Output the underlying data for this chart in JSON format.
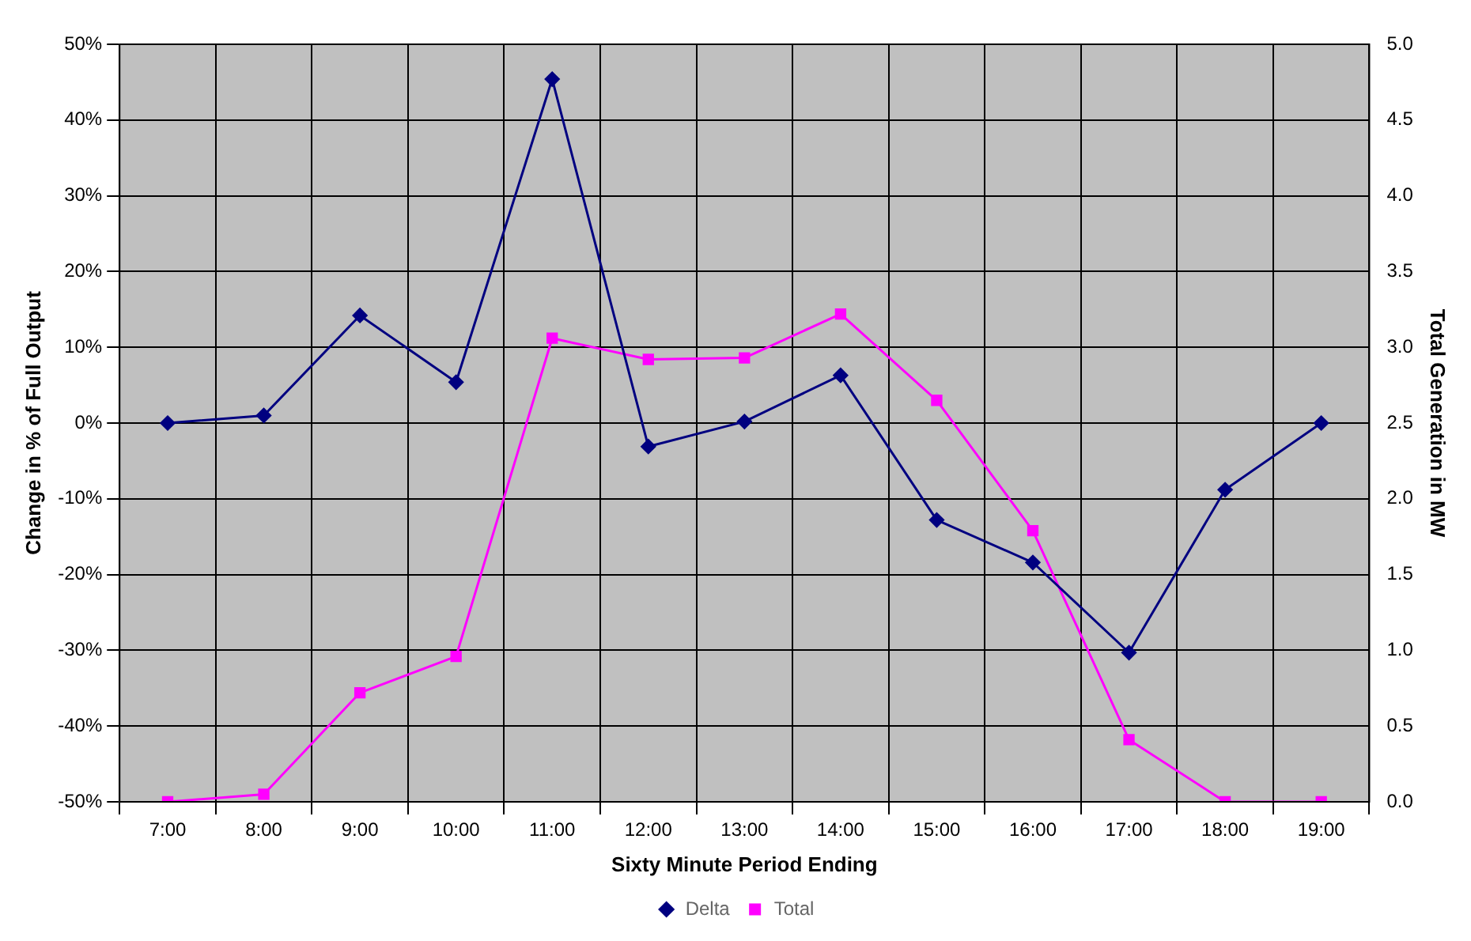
{
  "chart_data": {
    "type": "line",
    "xlabel": "Sixty Minute Period Ending",
    "ylabel": "Change in % of Full Output",
    "y2label": "Total Generation in MW",
    "categories": [
      "7:00",
      "8:00",
      "9:00",
      "10:00",
      "11:00",
      "12:00",
      "13:00",
      "14:00",
      "15:00",
      "16:00",
      "17:00",
      "18:00",
      "19:00"
    ],
    "series": [
      {
        "name": "Delta",
        "color": "#000080",
        "marker": "diamond",
        "values": [
          0,
          1,
          14.2,
          5.4,
          45.4,
          -3.1,
          0.2,
          6.3,
          -12.8,
          -18.4,
          -30.3,
          -8.8,
          0
        ]
      },
      {
        "name": "Total",
        "color": "#ff00ff",
        "marker": "square",
        "axis": "y2",
        "values": [
          0,
          0.05,
          0.72,
          0.96,
          3.06,
          2.92,
          2.93,
          3.22,
          2.65,
          1.79,
          0.41,
          0,
          0
        ]
      }
    ],
    "ylim": [
      -50,
      50
    ],
    "yticks": [
      {
        "value": -50,
        "label": "-50%"
      },
      {
        "value": -40,
        "label": "-40%"
      },
      {
        "value": -30,
        "label": "-30%"
      },
      {
        "value": -20,
        "label": "-20%"
      },
      {
        "value": -10,
        "label": "-10%"
      },
      {
        "value": 0,
        "label": "0%"
      },
      {
        "value": 10,
        "label": "10%"
      },
      {
        "value": 20,
        "label": "20%"
      },
      {
        "value": 30,
        "label": "30%"
      },
      {
        "value": 40,
        "label": "40%"
      },
      {
        "value": 50,
        "label": "50%"
      }
    ],
    "y2lim": [
      0,
      5
    ],
    "y2ticks": [
      {
        "value": 0,
        "label": "0.0"
      },
      {
        "value": 0.5,
        "label": "0.5"
      },
      {
        "value": 1,
        "label": "1.0"
      },
      {
        "value": 1.5,
        "label": "1.5"
      },
      {
        "value": 2,
        "label": "2.0"
      },
      {
        "value": 2.5,
        "label": "2.5"
      },
      {
        "value": 3,
        "label": "3.0"
      },
      {
        "value": 3.5,
        "label": "3.5"
      },
      {
        "value": 4,
        "label": "4.0"
      },
      {
        "value": 4.5,
        "label": "4.5"
      },
      {
        "value": 5,
        "label": "5.0"
      }
    ],
    "grid": true,
    "legend": "bottom",
    "line_style": "solid"
  }
}
